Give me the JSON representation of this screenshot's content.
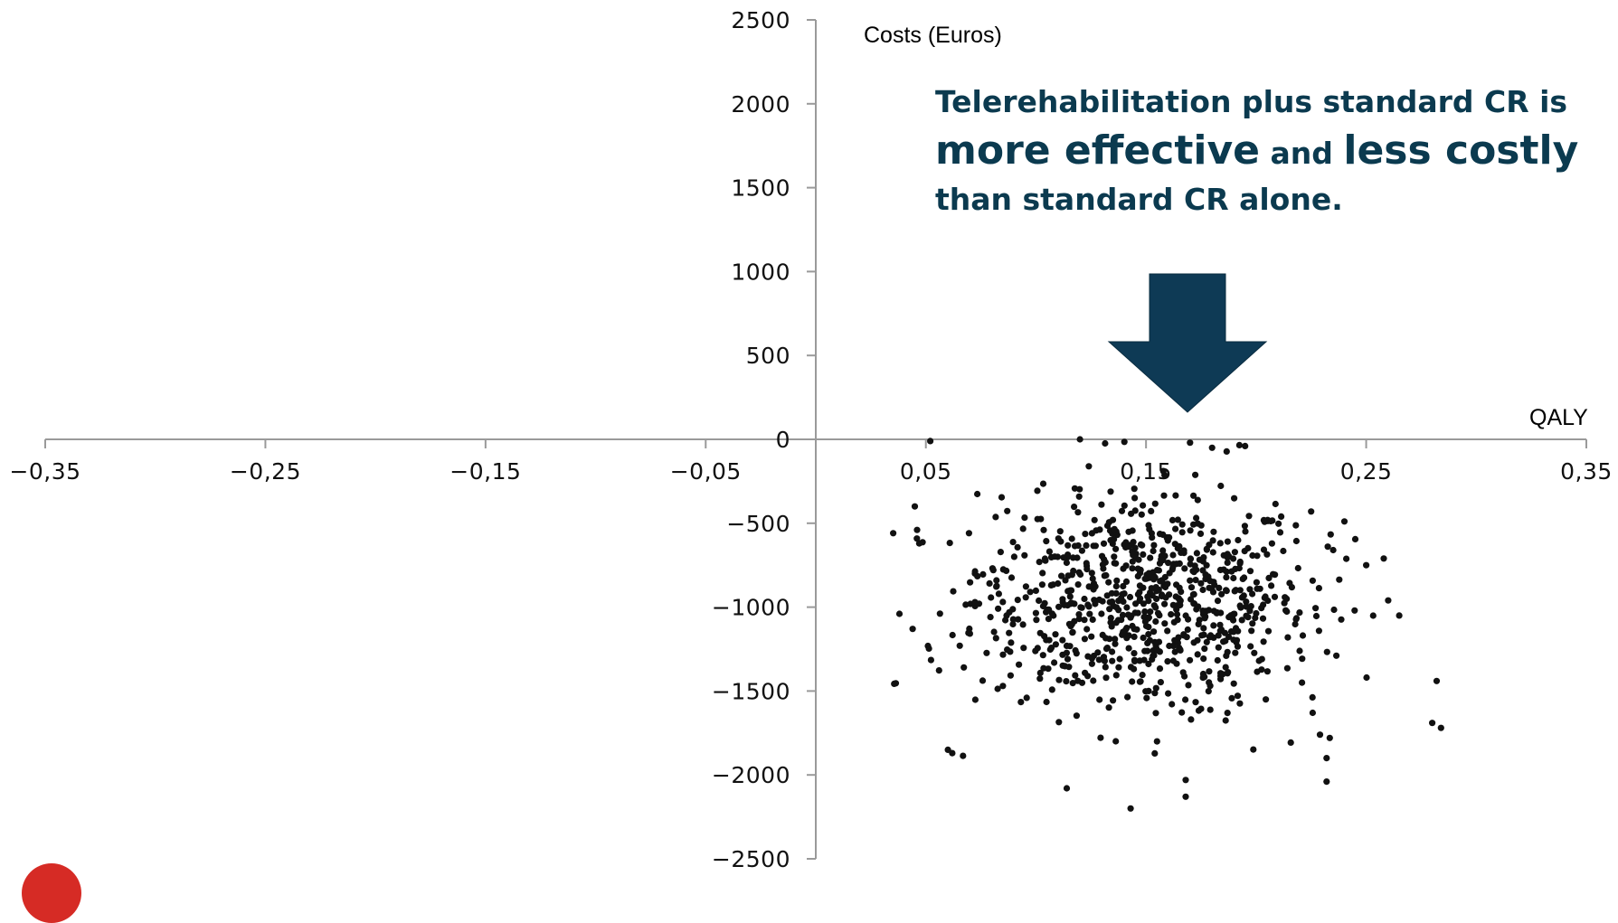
{
  "chart_data": {
    "type": "scatter",
    "xlabel": "QALY",
    "ylabel": "Costs (Euros)",
    "xlim": [
      -0.35,
      0.35
    ],
    "ylim": [
      -2500,
      2500
    ],
    "x_ticks": [
      "−0,35",
      "−0,25",
      "−0,15",
      "−0,05",
      "0,05",
      "0,15",
      "0,25",
      "0,35"
    ],
    "x_tick_values": [
      -0.35,
      -0.25,
      -0.15,
      -0.05,
      0.05,
      0.15,
      0.25,
      0.35
    ],
    "y_ticks": [
      "2500",
      "2000",
      "1500",
      "1000",
      "500",
      "0",
      "−500",
      "−1000",
      "−1500",
      "−2000",
      "−2500"
    ],
    "y_tick_values": [
      2500,
      2000,
      1500,
      1000,
      500,
      0,
      -500,
      -1000,
      -1500,
      -2000,
      -2500
    ],
    "point_color": "#111111",
    "points_sample": [
      [
        0.052,
        -10
      ],
      [
        0.12,
        0
      ],
      [
        0.17,
        -20
      ],
      [
        0.18,
        -50
      ],
      [
        0.195,
        -40
      ],
      [
        0.045,
        -400
      ],
      [
        0.046,
        -540
      ],
      [
        0.047,
        -620
      ],
      [
        0.038,
        -1040
      ],
      [
        0.044,
        -1130
      ],
      [
        0.085,
        -1470
      ],
      [
        0.06,
        -1850
      ],
      [
        0.062,
        -1870
      ],
      [
        0.114,
        -2080
      ],
      [
        0.143,
        -2200
      ],
      [
        0.168,
        -2030
      ],
      [
        0.168,
        -2130
      ],
      [
        0.229,
        -1760
      ],
      [
        0.232,
        -1900
      ],
      [
        0.232,
        -2040
      ],
      [
        0.28,
        -1690
      ],
      [
        0.284,
        -1720
      ],
      [
        0.282,
        -1440
      ],
      [
        0.26,
        -960
      ],
      [
        0.265,
        -1050
      ],
      [
        0.25,
        -750
      ],
      [
        0.258,
        -710
      ],
      [
        0.235,
        -660
      ],
      [
        0.225,
        -430
      ],
      [
        0.155,
        -1800
      ]
    ],
    "cluster": {
      "center_x": 0.148,
      "center_y": -960,
      "spread_x": 0.038,
      "spread_y": 320,
      "n_points": 820
    }
  },
  "callout": {
    "line1": "Telerehabilitation plus standard CR is",
    "line2a": "more effective",
    "line2b": " and ",
    "line2c": "less costly",
    "line3": "than standard CR alone."
  },
  "colors": {
    "callout_text": "#0b3a4f",
    "arrow": "#0e3a55",
    "axis": "#9a9a9a",
    "logo": "#d62b25"
  }
}
